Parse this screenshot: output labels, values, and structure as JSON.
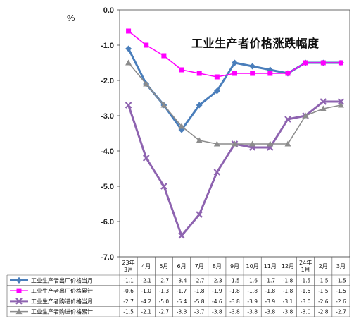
{
  "chart_data": {
    "type": "line",
    "title": "工业生产者价格涨跌幅度",
    "ylabel": "%",
    "ylim": [
      -7.0,
      0.0
    ],
    "yticks": [
      "0.0",
      "-1.0",
      "-2.0",
      "-3.0",
      "-4.0",
      "-5.0",
      "-6.0",
      "-7.0"
    ],
    "categories": [
      "23年\n3月",
      "4月",
      "5月",
      "6月",
      "7月",
      "8月",
      "9月",
      "10月",
      "11月",
      "12月",
      "24年\n1月",
      "2月",
      "3月"
    ],
    "legend_position": "table-below",
    "grid": false,
    "series": [
      {
        "name": "工业生产者出厂价格当月",
        "color": "#4a7ebb",
        "marker": "diamond",
        "values": [
          -1.1,
          -2.1,
          -2.7,
          -3.4,
          -2.7,
          -2.3,
          -1.5,
          -1.6,
          -1.7,
          -1.8,
          -1.5,
          -1.5,
          -1.5
        ]
      },
      {
        "name": "工业生产者出厂价格累计",
        "color": "#ff00ff",
        "marker": "square",
        "values": [
          -0.6,
          -1.0,
          -1.3,
          -1.7,
          -1.8,
          -1.9,
          -1.8,
          -1.8,
          -1.8,
          -1.8,
          -1.5,
          -1.5,
          -1.5
        ]
      },
      {
        "name": "工业生产者购进价格当月",
        "color": "#8e63b0",
        "marker": "x",
        "values": [
          -2.7,
          -4.2,
          -5.0,
          -6.4,
          -5.8,
          -4.6,
          -3.8,
          -3.9,
          -3.9,
          -3.1,
          -3.0,
          -2.6,
          -2.6
        ]
      },
      {
        "name": "工业生产者购进价格累计",
        "color": "#8c8c8c",
        "marker": "triangle",
        "values": [
          -1.5,
          -2.1,
          -2.7,
          -3.3,
          -3.7,
          -3.8,
          -3.8,
          -3.8,
          -3.8,
          -3.8,
          -3.0,
          -2.8,
          -2.7
        ]
      }
    ]
  }
}
